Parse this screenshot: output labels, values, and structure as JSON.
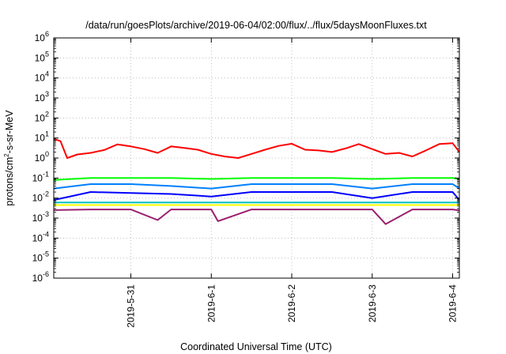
{
  "chart_data": {
    "type": "line",
    "title": "/data/run/goesPlots/archive/2019-06-04/02:00/flux/../flux/5daysMoonFluxes.txt",
    "xlabel": "Coordinated Universal Time (UTC)",
    "ylabel": {
      "prefix": "protons/cm",
      "superscript": "2",
      "suffix": "-s-sr-MeV"
    },
    "yscale": "log",
    "ylim_exponent": [
      -6,
      6
    ],
    "y_tick_labels": [
      {
        "base": "10",
        "exp": "6"
      },
      {
        "base": "10",
        "exp": "5"
      },
      {
        "base": "10",
        "exp": "4"
      },
      {
        "base": "10",
        "exp": "3"
      },
      {
        "base": "10",
        "exp": "2"
      },
      {
        "base": "10",
        "exp": "1"
      },
      {
        "base": "10",
        "exp": "0"
      },
      {
        "base": "10",
        "exp": "-1"
      },
      {
        "base": "10",
        "exp": "-2"
      },
      {
        "base": "10",
        "exp": "-3"
      },
      {
        "base": "10",
        "exp": "-4"
      },
      {
        "base": "10",
        "exp": "-5"
      },
      {
        "base": "10",
        "exp": "-6"
      }
    ],
    "xlim": [
      "2019-05-30 01:00",
      "2019-06-04 02:00"
    ],
    "x_ticks": [
      {
        "label": "2019-5-31",
        "value": "2019-05-31 00:00"
      },
      {
        "label": "2019-6-1",
        "value": "2019-06-01 00:00"
      },
      {
        "label": "2019-6-2",
        "value": "2019-06-02 00:00"
      },
      {
        "label": "2019-6-3",
        "value": "2019-06-03 00:00"
      },
      {
        "label": "2019-6-4",
        "value": "2019-06-04 00:00"
      }
    ],
    "grid": true,
    "series": [
      {
        "color": "#ff0000",
        "x": [
          "2019-05-30 01:00",
          "2019-05-30 03:00",
          "2019-05-30 05:00",
          "2019-05-30 08:00",
          "2019-05-30 12:00",
          "2019-05-30 16:00",
          "2019-05-30 20:00",
          "2019-05-31 00:00",
          "2019-05-31 04:00",
          "2019-05-31 08:00",
          "2019-05-31 12:00",
          "2019-05-31 16:00",
          "2019-05-31 20:00",
          "2019-06-01 00:00",
          "2019-06-01 04:00",
          "2019-06-01 08:00",
          "2019-06-01 12:00",
          "2019-06-01 16:00",
          "2019-06-01 20:00",
          "2019-06-02 00:00",
          "2019-06-02 04:00",
          "2019-06-02 08:00",
          "2019-06-02 12:00",
          "2019-06-02 16:00",
          "2019-06-02 20:00",
          "2019-06-03 00:00",
          "2019-06-03 04:00",
          "2019-06-03 08:00",
          "2019-06-03 12:00",
          "2019-06-03 16:00",
          "2019-06-03 20:00",
          "2019-06-04 00:00",
          "2019-06-04 02:00"
        ],
        "y": [
          9.0,
          7.0,
          1.0,
          1.5,
          1.8,
          2.5,
          4.8,
          3.8,
          2.8,
          1.8,
          3.8,
          3.2,
          2.6,
          1.6,
          1.2,
          1.0,
          1.6,
          2.6,
          4.0,
          5.2,
          2.6,
          2.4,
          2.0,
          3.0,
          5.0,
          2.8,
          1.6,
          1.8,
          1.2,
          2.4,
          5.0,
          5.5,
          2.0
        ]
      },
      {
        "color": "#00ff00",
        "x": [
          "2019-05-30 01:00",
          "2019-05-30 12:00",
          "2019-05-31 00:00",
          "2019-05-31 12:00",
          "2019-06-01 00:00",
          "2019-06-01 12:00",
          "2019-06-02 00:00",
          "2019-06-02 12:00",
          "2019-06-03 00:00",
          "2019-06-03 12:00",
          "2019-06-04 00:00",
          "2019-06-04 02:00"
        ],
        "y": [
          0.08,
          0.1,
          0.1,
          0.1,
          0.09,
          0.1,
          0.1,
          0.1,
          0.09,
          0.1,
          0.1,
          0.09
        ]
      },
      {
        "color": "#0080ff",
        "x": [
          "2019-05-30 01:00",
          "2019-05-30 12:00",
          "2019-05-31 00:00",
          "2019-05-31 12:00",
          "2019-06-01 00:00",
          "2019-06-01 12:00",
          "2019-06-02 00:00",
          "2019-06-02 12:00",
          "2019-06-03 00:00",
          "2019-06-03 12:00",
          "2019-06-04 00:00",
          "2019-06-04 02:00"
        ],
        "y": [
          0.03,
          0.05,
          0.05,
          0.04,
          0.03,
          0.05,
          0.05,
          0.05,
          0.03,
          0.05,
          0.05,
          0.03
        ]
      },
      {
        "color": "#0000ff",
        "x": [
          "2019-05-30 01:00",
          "2019-05-30 12:00",
          "2019-05-31 00:00",
          "2019-05-31 12:00",
          "2019-06-01 00:00",
          "2019-06-01 12:00",
          "2019-06-02 00:00",
          "2019-06-02 12:00",
          "2019-06-03 00:00",
          "2019-06-03 12:00",
          "2019-06-04 00:00",
          "2019-06-04 02:00"
        ],
        "y": [
          0.008,
          0.02,
          0.018,
          0.016,
          0.012,
          0.02,
          0.02,
          0.02,
          0.01,
          0.02,
          0.02,
          0.008
        ]
      },
      {
        "color": "#00c0c0",
        "x": [
          "2019-05-30 01:00",
          "2019-05-30 12:00",
          "2019-05-31 00:00",
          "2019-05-31 12:00",
          "2019-06-01 00:00",
          "2019-06-01 12:00",
          "2019-06-02 00:00",
          "2019-06-02 12:00",
          "2019-06-03 00:00",
          "2019-06-03 12:00",
          "2019-06-04 00:00",
          "2019-06-04 02:00"
        ],
        "y": [
          0.006,
          0.006,
          0.006,
          0.006,
          0.006,
          0.006,
          0.006,
          0.006,
          0.006,
          0.006,
          0.006,
          0.006
        ]
      },
      {
        "color": "#ffff00",
        "x": [
          "2019-05-30 01:00",
          "2019-05-30 12:00",
          "2019-05-31 00:00",
          "2019-05-31 12:00",
          "2019-06-01 00:00",
          "2019-06-01 12:00",
          "2019-06-02 00:00",
          "2019-06-02 12:00",
          "2019-06-03 00:00",
          "2019-06-03 12:00",
          "2019-06-04 00:00",
          "2019-06-04 02:00"
        ],
        "y": [
          0.0045,
          0.0045,
          0.0045,
          0.0045,
          0.0045,
          0.0045,
          0.0045,
          0.0045,
          0.0045,
          0.0045,
          0.0045,
          0.0045
        ]
      },
      {
        "color": "#9a1f6e",
        "x": [
          "2019-05-30 01:00",
          "2019-05-30 12:00",
          "2019-05-31 00:00",
          "2019-05-31 08:00",
          "2019-05-31 12:00",
          "2019-06-01 00:00",
          "2019-06-01 02:00",
          "2019-06-01 12:00",
          "2019-06-02 00:00",
          "2019-06-02 12:00",
          "2019-06-03 00:00",
          "2019-06-03 04:00",
          "2019-06-03 12:00",
          "2019-06-04 00:00",
          "2019-06-04 02:00"
        ],
        "y": [
          0.0025,
          0.0027,
          0.0027,
          0.0008,
          0.0027,
          0.0027,
          0.0007,
          0.0027,
          0.0027,
          0.0027,
          0.0027,
          0.0005,
          0.0027,
          0.0027,
          0.0024
        ]
      }
    ]
  }
}
